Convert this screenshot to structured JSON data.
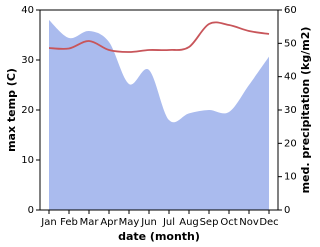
{
  "chart_data": {
    "type": "line_area",
    "categories": [
      "Jan",
      "Feb",
      "Mar",
      "Apr",
      "May",
      "Jun",
      "Jul",
      "Aug",
      "Sep",
      "Oct",
      "Nov",
      "Dec"
    ],
    "x_label": "date (month)",
    "y_label": "max temp (C)",
    "y2_label": "med. precipitation (kg/m2)",
    "ylim": [
      0,
      40
    ],
    "yticks": [
      0,
      10,
      20,
      30,
      40
    ],
    "y2lim": [
      0,
      60
    ],
    "y2ticks": [
      0,
      10,
      20,
      30,
      40,
      50,
      60
    ],
    "series": [
      {
        "name": "med. precipitation",
        "axis": "y2",
        "kind": "area",
        "color": "#aabbee",
        "values": [
          57,
          51.6,
          53.7,
          50.4,
          37.8,
          42,
          27,
          29,
          30,
          29.4,
          37.5,
          46
        ]
      },
      {
        "name": "max temp",
        "axis": "y",
        "kind": "line",
        "color": "#c8555a",
        "values": [
          32.4,
          32.3,
          33.8,
          32,
          31.6,
          32,
          32,
          32.6,
          37.2,
          37,
          35.8,
          35.2
        ]
      }
    ]
  }
}
